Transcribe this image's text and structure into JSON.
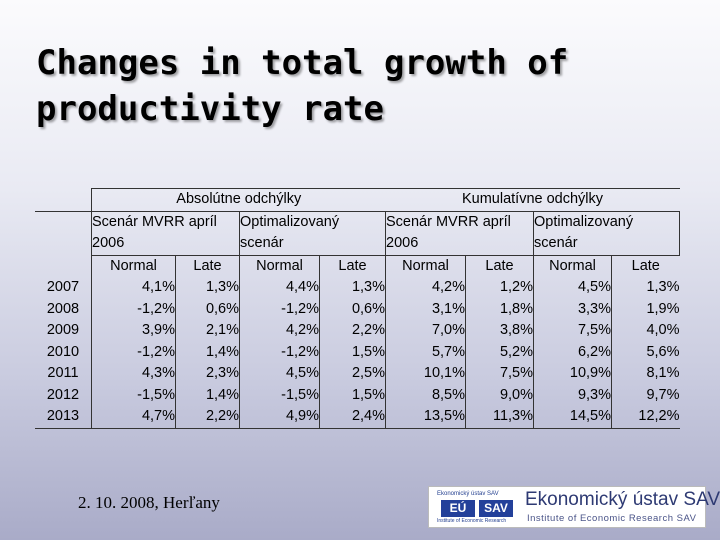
{
  "slide": {
    "title_line1": "Changes in total growth of",
    "title_line2": "productivity rate"
  },
  "table": {
    "groups": [
      "Absolútne odchýlky",
      "Kumulatívne odchýlky"
    ],
    "scenario_a_line1": "Scenár  MVRR  apríl",
    "scenario_a_line2": "2006",
    "scenario_b_line1": "Optimalizovaný",
    "scenario_b_line2": "scenár",
    "col_normal": "Normal",
    "col_late": "Late",
    "rows": [
      {
        "year": "2007",
        "v": [
          "4,1%",
          "1,3%",
          "4,4%",
          "1,3%",
          "4,2%",
          "1,2%",
          "4,5%",
          "1,3%"
        ]
      },
      {
        "year": "2008",
        "v": [
          "-1,2%",
          "0,6%",
          "-1,2%",
          "0,6%",
          "3,1%",
          "1,8%",
          "3,3%",
          "1,9%"
        ]
      },
      {
        "year": "2009",
        "v": [
          "3,9%",
          "2,1%",
          "4,2%",
          "2,2%",
          "7,0%",
          "3,8%",
          "7,5%",
          "4,0%"
        ]
      },
      {
        "year": "2010",
        "v": [
          "-1,2%",
          "1,4%",
          "-1,2%",
          "1,5%",
          "5,7%",
          "5,2%",
          "6,2%",
          "5,6%"
        ]
      },
      {
        "year": "2011",
        "v": [
          "4,3%",
          "2,3%",
          "4,5%",
          "2,5%",
          "10,1%",
          "7,5%",
          "10,9%",
          "8,1%"
        ]
      },
      {
        "year": "2012",
        "v": [
          "-1,5%",
          "1,4%",
          "-1,5%",
          "1,5%",
          "8,5%",
          "9,0%",
          "9,3%",
          "9,7%"
        ]
      },
      {
        "year": "2013",
        "v": [
          "4,7%",
          "2,2%",
          "4,9%",
          "2,4%",
          "13,5%",
          "11,3%",
          "14,5%",
          "12,2%"
        ]
      }
    ]
  },
  "footer": {
    "date_place": "2. 10. 2008, Herľany",
    "logo_name": "Ekonomický ústav SAV",
    "logo_subtitle": "Institute of Economic Research SAV",
    "logo_box1": "EÚ",
    "logo_box2": "SAV",
    "logo_topline": "Ekonomický ústav SAV",
    "logo_bottomline": "Institute of Economic Research"
  },
  "colors": {
    "logo_blue": "#23409a",
    "logo_text": "#2e3a73"
  }
}
